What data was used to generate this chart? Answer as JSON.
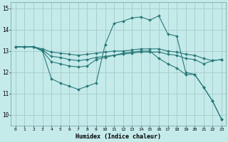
{
  "xlabel": "Humidex (Indice chaleur)",
  "background_color": "#c5eaea",
  "grid_color": "#aacece",
  "line_color": "#2a7a7a",
  "xlim": [
    -0.5,
    23.5
  ],
  "ylim": [
    9.5,
    15.3
  ],
  "yticks": [
    10,
    11,
    12,
    13,
    14,
    15
  ],
  "xticks": [
    0,
    1,
    2,
    3,
    4,
    5,
    6,
    7,
    8,
    9,
    10,
    11,
    12,
    13,
    14,
    15,
    16,
    17,
    18,
    19,
    20,
    21,
    22,
    23
  ],
  "series": [
    {
      "x": [
        0,
        1,
        2,
        3,
        4,
        5,
        6,
        7,
        8,
        9,
        10,
        11,
        12,
        13,
        14,
        15,
        16,
        17,
        18,
        19,
        20,
        21,
        22,
        23
      ],
      "y": [
        13.2,
        13.2,
        13.2,
        13.0,
        11.7,
        11.5,
        11.35,
        11.2,
        11.35,
        11.5,
        13.3,
        14.3,
        14.4,
        14.55,
        14.6,
        14.45,
        14.65,
        13.8,
        13.7,
        12.0,
        11.9,
        11.3,
        10.65,
        9.8
      ]
    },
    {
      "x": [
        0,
        1,
        2,
        3,
        4,
        5,
        6,
        7,
        8,
        9,
        10,
        11,
        12,
        13,
        14,
        15,
        16,
        17,
        18,
        19,
        20,
        21,
        22,
        23
      ],
      "y": [
        13.2,
        13.2,
        13.2,
        13.0,
        12.5,
        12.4,
        12.3,
        12.25,
        12.3,
        12.6,
        12.7,
        12.8,
        12.9,
        12.95,
        13.0,
        13.0,
        12.65,
        12.4,
        12.2,
        11.9,
        11.9,
        11.3,
        10.65,
        9.8
      ]
    },
    {
      "x": [
        0,
        1,
        2,
        3,
        4,
        5,
        6,
        7,
        8,
        9,
        10,
        11,
        12,
        13,
        14,
        15,
        16,
        17,
        18,
        19,
        20,
        21,
        22,
        23
      ],
      "y": [
        13.2,
        13.2,
        13.2,
        13.05,
        12.75,
        12.7,
        12.6,
        12.55,
        12.6,
        12.7,
        12.75,
        12.8,
        12.85,
        12.9,
        12.95,
        12.95,
        12.95,
        12.85,
        12.8,
        12.65,
        12.6,
        12.4,
        12.55,
        12.6
      ]
    },
    {
      "x": [
        0,
        1,
        2,
        3,
        4,
        5,
        6,
        7,
        8,
        9,
        10,
        11,
        12,
        13,
        14,
        15,
        16,
        17,
        18,
        19,
        20,
        21,
        22,
        23
      ],
      "y": [
        13.2,
        13.2,
        13.2,
        13.1,
        12.95,
        12.9,
        12.85,
        12.8,
        12.85,
        12.9,
        12.95,
        13.0,
        13.0,
        13.05,
        13.1,
        13.1,
        13.1,
        13.0,
        12.95,
        12.85,
        12.8,
        12.65,
        12.55,
        12.6
      ]
    }
  ]
}
